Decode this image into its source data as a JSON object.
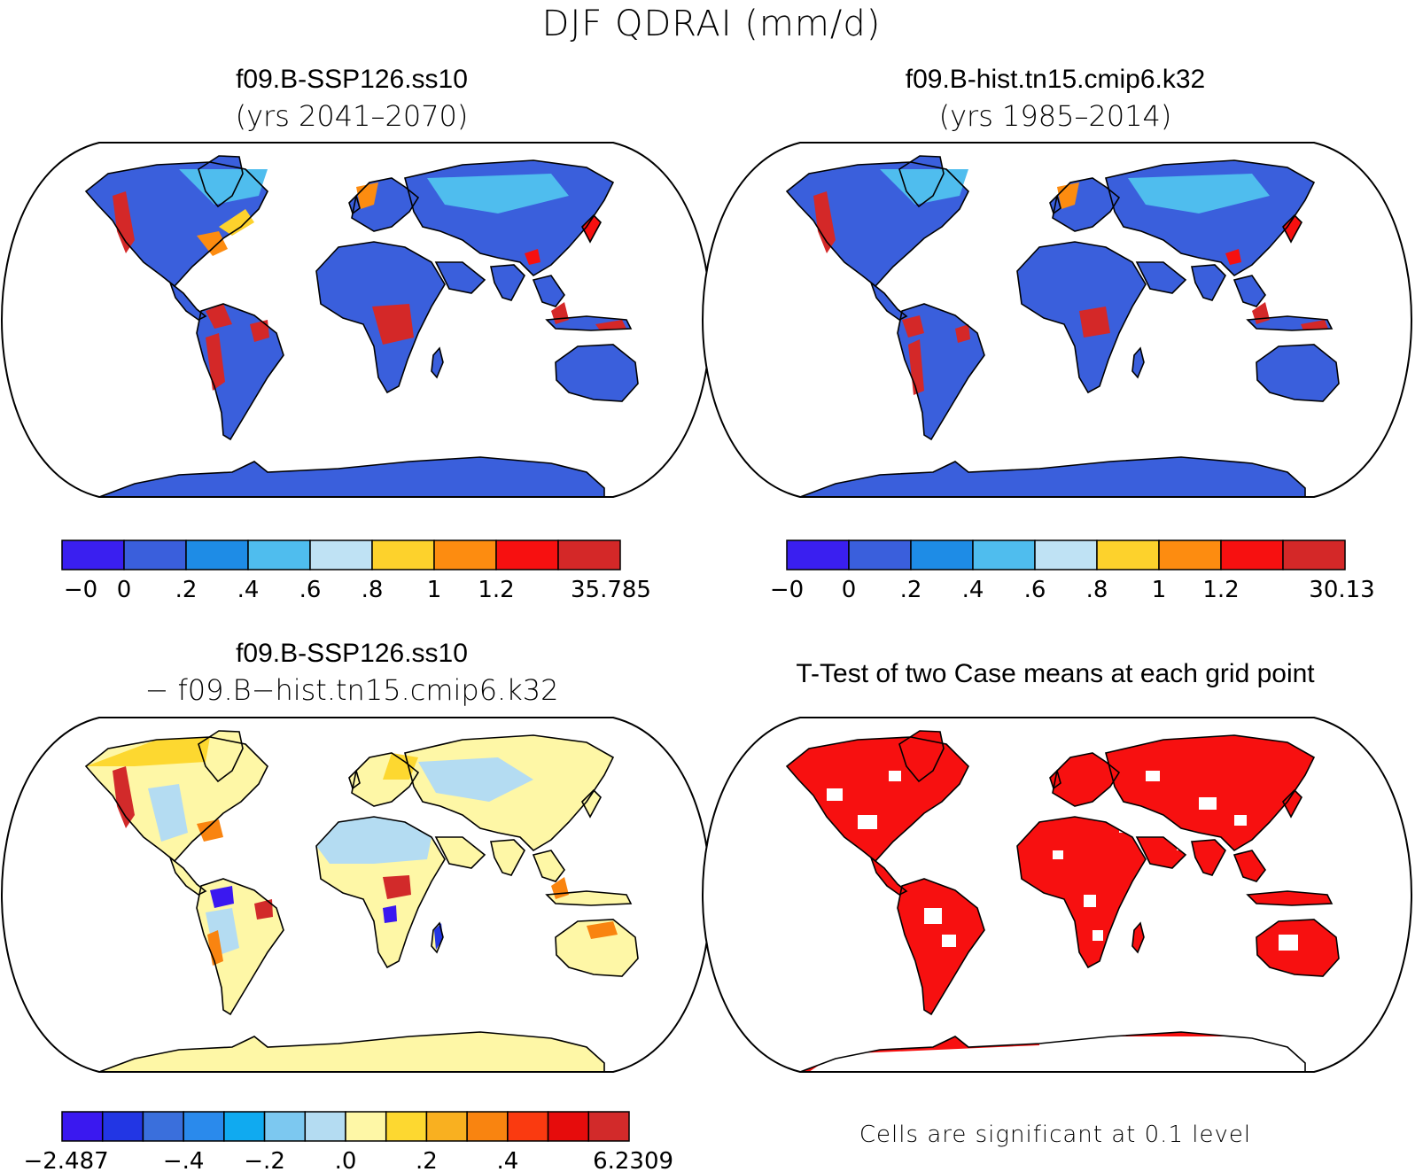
{
  "title": "DJF QDRAI (mm/d)",
  "panels": [
    {
      "id": "ssp126",
      "title": "f09.B-SSP126.ss10",
      "subtitle": "(yrs 2041–2070)",
      "colorbar": {
        "colors": [
          "#3a1ff0",
          "#3a5fdc",
          "#1e8ce6",
          "#4fbdee",
          "#bfe2f4",
          "#fdd22c",
          "#fd8c10",
          "#f71010",
          "#d42828"
        ],
        "labels": [
          "−0",
          "0",
          ".2",
          ".4",
          ".6",
          ".8",
          "1",
          "1.2",
          "35.785"
        ]
      }
    },
    {
      "id": "hist",
      "title": "f09.B-hist.tn15.cmip6.k32",
      "subtitle": "(yrs 1985–2014)",
      "colorbar": {
        "colors": [
          "#3a1ff0",
          "#3a5fdc",
          "#1e8ce6",
          "#4fbdee",
          "#bfe2f4",
          "#fdd22c",
          "#fd8c10",
          "#f71010",
          "#d42828"
        ],
        "labels": [
          "−0",
          "0",
          ".2",
          ".4",
          ".6",
          ".8",
          "1",
          "1.2",
          "30.13"
        ]
      }
    },
    {
      "id": "diff",
      "title": "f09.B-SSP126.ss10",
      "subtitle": "− f09.B−hist.tn15.cmip6.k32",
      "colorbar": {
        "colors": [
          "#3a18f0",
          "#2236e4",
          "#3a6fdc",
          "#2a8aec",
          "#10aaf0",
          "#7cc8f0",
          "#b4dcf2",
          "#fef7a6",
          "#fdd830",
          "#f9b020",
          "#f98410",
          "#fa3a10",
          "#e60c0c",
          "#d22a2a"
        ],
        "labels": [
          "−2.487",
          "−.4",
          "−.2",
          ".0",
          ".2",
          ".4",
          "6.2309"
        ]
      }
    },
    {
      "id": "ttest",
      "title": "T-Test of two Case means at each grid point",
      "note": "Cells are significant at 0.1 level"
    }
  ]
}
